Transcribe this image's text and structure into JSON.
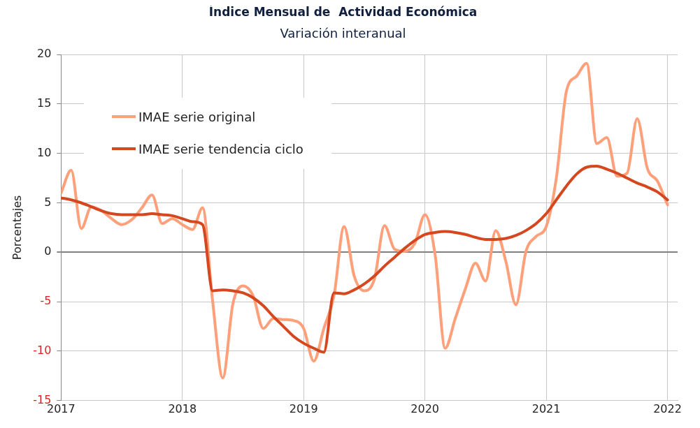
{
  "chart_data": {
    "type": "line",
    "title": "Índice Mensual de  Actividad Económica",
    "subtitle": "Variación interanual",
    "ylabel": "Porcentajes",
    "x": [
      "2017-01",
      "2017-02",
      "2017-03",
      "2017-04",
      "2017-05",
      "2017-06",
      "2017-07",
      "2017-08",
      "2017-09",
      "2017-10",
      "2017-11",
      "2017-12",
      "2018-01",
      "2018-02",
      "2018-03",
      "2018-04",
      "2018-05",
      "2018-06",
      "2018-07",
      "2018-08",
      "2018-09",
      "2018-10",
      "2018-11",
      "2018-12",
      "2019-01",
      "2019-02",
      "2019-03",
      "2019-04",
      "2019-05",
      "2019-06",
      "2019-07",
      "2019-08",
      "2019-09",
      "2019-10",
      "2019-11",
      "2019-12",
      "2020-01",
      "2020-02",
      "2020-03",
      "2020-04",
      "2020-05",
      "2020-06",
      "2020-07",
      "2020-08",
      "2020-09",
      "2020-10",
      "2020-11",
      "2020-12",
      "2021-01",
      "2021-02",
      "2021-03",
      "2021-04",
      "2021-05",
      "2021-06",
      "2021-07",
      "2021-08",
      "2021-09",
      "2021-10",
      "2021-11",
      "2021-12",
      "2022-01"
    ],
    "series": [
      {
        "name": "IMAE serie original",
        "color": "#ffa07a",
        "values": [
          6.0,
          8.3,
          2.4,
          4.6,
          4.2,
          3.4,
          2.8,
          3.3,
          4.5,
          5.8,
          2.9,
          3.4,
          2.8,
          2.3,
          4.5,
          -5,
          -12.7,
          -5.2,
          -3.4,
          -4.4,
          -7.7,
          -6.7,
          -6.8,
          -6.9,
          -7.7,
          -11.0,
          -7.7,
          -4.4,
          2.6,
          -2.4,
          -3.9,
          -2.7,
          2.7,
          0.3,
          0.1,
          0.9,
          3.8,
          -0.2,
          -9.7,
          -6.7,
          -3.7,
          -1.1,
          -2.9,
          2.2,
          -0.9,
          -5.3,
          0.1,
          1.6,
          2.6,
          7.5,
          16.3,
          17.8,
          19.1,
          11.0,
          11.6,
          7.7,
          8.0,
          13.5,
          8.5,
          7.2,
          4.8
        ]
      },
      {
        "name": "IMAE serie  tendencia ciclo",
        "color": "#d4471f",
        "values": [
          5.5,
          5.3,
          5.0,
          4.6,
          4.2,
          3.9,
          3.8,
          3.8,
          3.8,
          3.9,
          3.8,
          3.7,
          3.4,
          3.1,
          2.8,
          -3.9,
          -3.8,
          -3.9,
          -4.1,
          -4.6,
          -5.4,
          -6.5,
          -7.5,
          -8.5,
          -9.2,
          -9.7,
          -10.1,
          -4.1,
          -4.2,
          -3.8,
          -3.2,
          -2.4,
          -1.4,
          -0.5,
          0.4,
          1.2,
          1.8,
          2.0,
          2.1,
          2.0,
          1.8,
          1.5,
          1.3,
          1.3,
          1.4,
          1.7,
          2.2,
          2.9,
          3.9,
          5.3,
          6.7,
          7.9,
          8.6,
          8.7,
          8.4,
          8.0,
          7.5,
          7.0,
          6.6,
          6.1,
          5.3
        ]
      }
    ],
    "xlim": [
      "2017-01",
      "2022-02"
    ],
    "xticks": [
      "2017",
      "2018",
      "2019",
      "2020",
      "2021",
      "2022"
    ],
    "ylim": [
      -15,
      20
    ],
    "yticks": [
      -15,
      -10,
      -5,
      0,
      5,
      10,
      15,
      20
    ],
    "grid": true,
    "legend": "top left",
    "marker": "none",
    "line_style": "solid"
  }
}
